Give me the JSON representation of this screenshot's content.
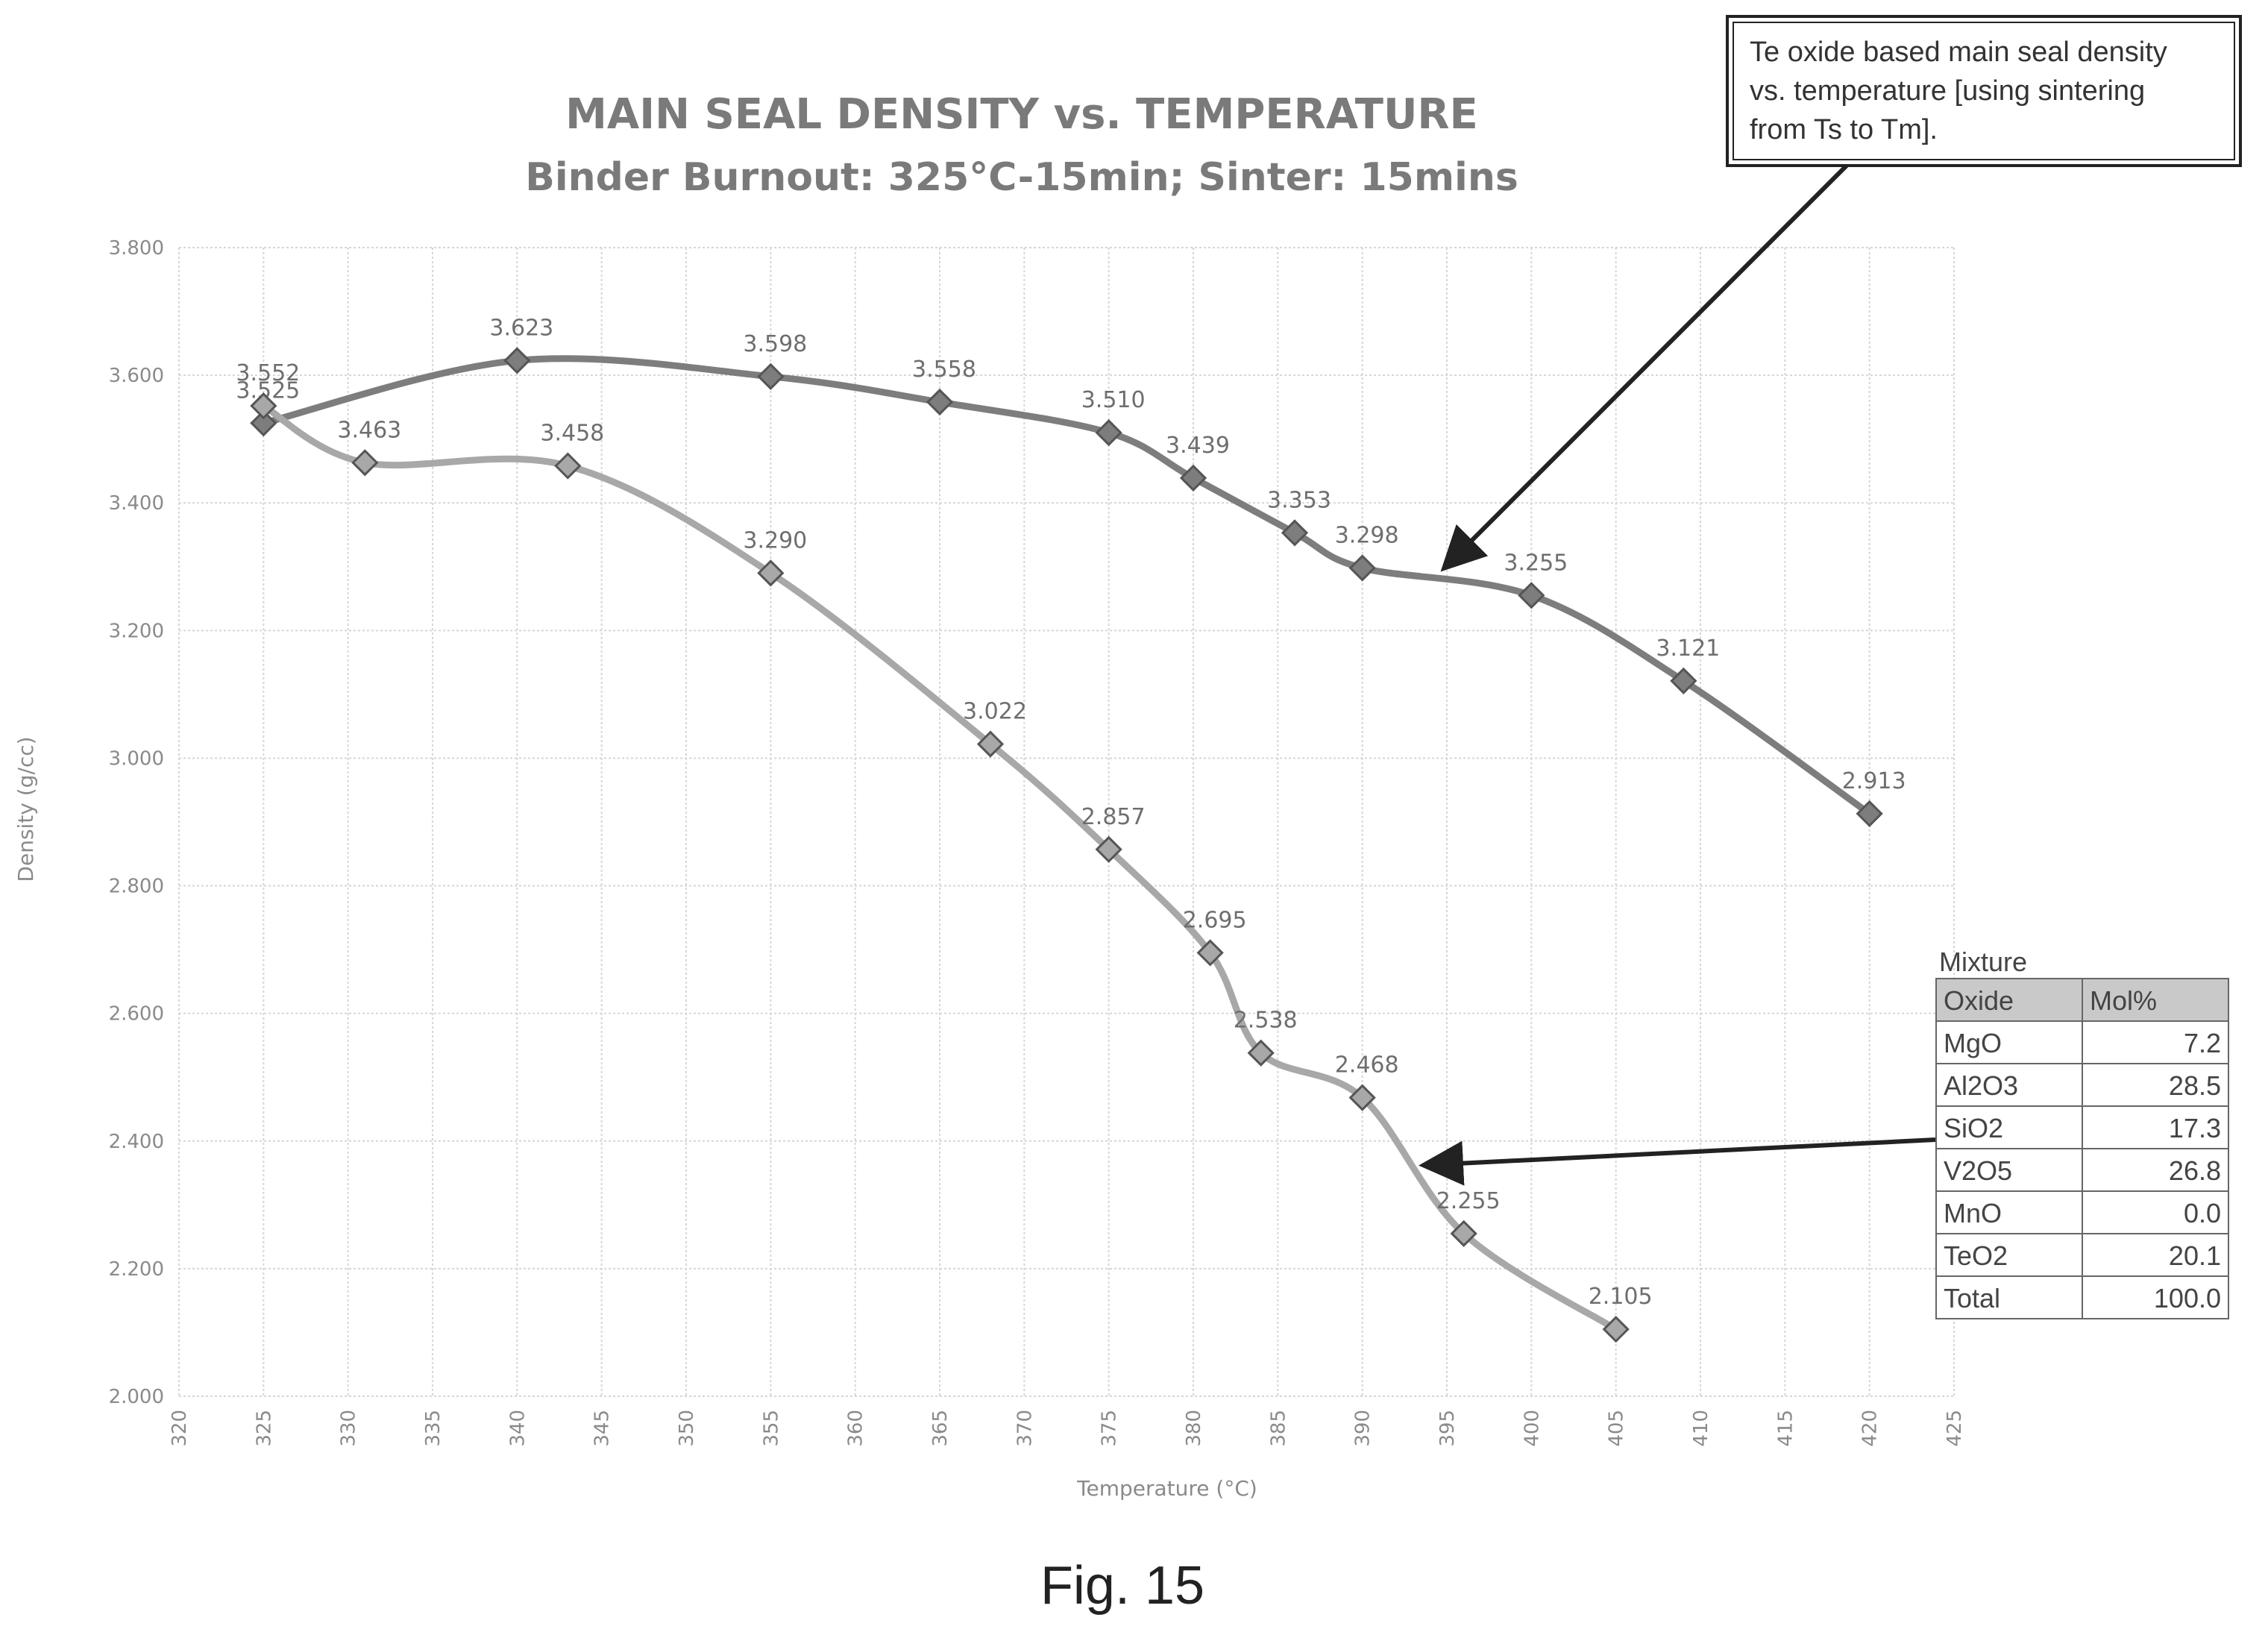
{
  "chart_data": {
    "type": "line",
    "title": "MAIN SEAL DENSITY vs. TEMPERATURE",
    "subtitle": "Binder Burnout: 325°C-15min; Sinter: 15mins",
    "xlabel": "Temperature (°C)",
    "ylabel": "Density (g/cc)",
    "xlim": [
      320,
      425
    ],
    "ylim": [
      2.0,
      3.8
    ],
    "x_ticks": [
      "320",
      "325",
      "330",
      "335",
      "340",
      "345",
      "350",
      "355",
      "360",
      "365",
      "370",
      "375",
      "380",
      "385",
      "390",
      "395",
      "400",
      "405",
      "410",
      "415",
      "420",
      "425"
    ],
    "y_ticks": [
      "2.000",
      "2.200",
      "2.400",
      "2.600",
      "2.800",
      "3.000",
      "3.200",
      "3.400",
      "3.600",
      "3.800"
    ],
    "grid": true,
    "series": [
      {
        "color": "#7d7d7d",
        "points": [
          {
            "x": 325,
            "y": 3.525,
            "label": "3.525"
          },
          {
            "x": 340,
            "y": 3.623,
            "label": "3.623"
          },
          {
            "x": 355,
            "y": 3.598,
            "label": "3.598"
          },
          {
            "x": 365,
            "y": 3.558,
            "label": "3.558"
          },
          {
            "x": 375,
            "y": 3.51,
            "label": "3.510"
          },
          {
            "x": 380,
            "y": 3.439,
            "label": "3.439"
          },
          {
            "x": 386,
            "y": 3.353,
            "label": "3.353"
          },
          {
            "x": 390,
            "y": 3.298,
            "label": "3.298"
          },
          {
            "x": 400,
            "y": 3.255,
            "label": "3.255"
          },
          {
            "x": 409,
            "y": 3.121,
            "label": "3.121"
          },
          {
            "x": 420,
            "y": 2.913,
            "label": "2.913"
          }
        ]
      },
      {
        "color": "#a8a8a8",
        "points": [
          {
            "x": 325,
            "y": 3.552,
            "label": "3.552"
          },
          {
            "x": 331,
            "y": 3.463,
            "label": "3.463"
          },
          {
            "x": 343,
            "y": 3.458,
            "label": "3.458"
          },
          {
            "x": 355,
            "y": 3.29,
            "label": "3.290"
          },
          {
            "x": 368,
            "y": 3.022,
            "label": "3.022"
          },
          {
            "x": 375,
            "y": 2.857,
            "label": "2.857"
          },
          {
            "x": 381,
            "y": 2.695,
            "label": "2.695"
          },
          {
            "x": 384,
            "y": 2.538,
            "label": "2.538"
          },
          {
            "x": 390,
            "y": 2.468,
            "label": "2.468"
          },
          {
            "x": 396,
            "y": 2.255,
            "label": "2.255"
          },
          {
            "x": 405,
            "y": 2.105,
            "label": "2.105"
          }
        ]
      }
    ]
  },
  "callout": {
    "lines": [
      "Te oxide based main seal density",
      "vs. temperature [using sintering",
      "from Ts to Tm]."
    ]
  },
  "mixture_table": {
    "title": "Mixture",
    "headers": [
      "Oxide",
      "Mol%"
    ],
    "rows": [
      [
        "MgO",
        "7.2"
      ],
      [
        "Al2O3",
        "28.5"
      ],
      [
        "SiO2",
        "17.3"
      ],
      [
        "V2O5",
        "26.8"
      ],
      [
        "MnO",
        "0.0"
      ],
      [
        "TeO2",
        "20.1"
      ],
      [
        "Total",
        "100.0"
      ]
    ]
  },
  "figure_caption": "Fig. 15"
}
